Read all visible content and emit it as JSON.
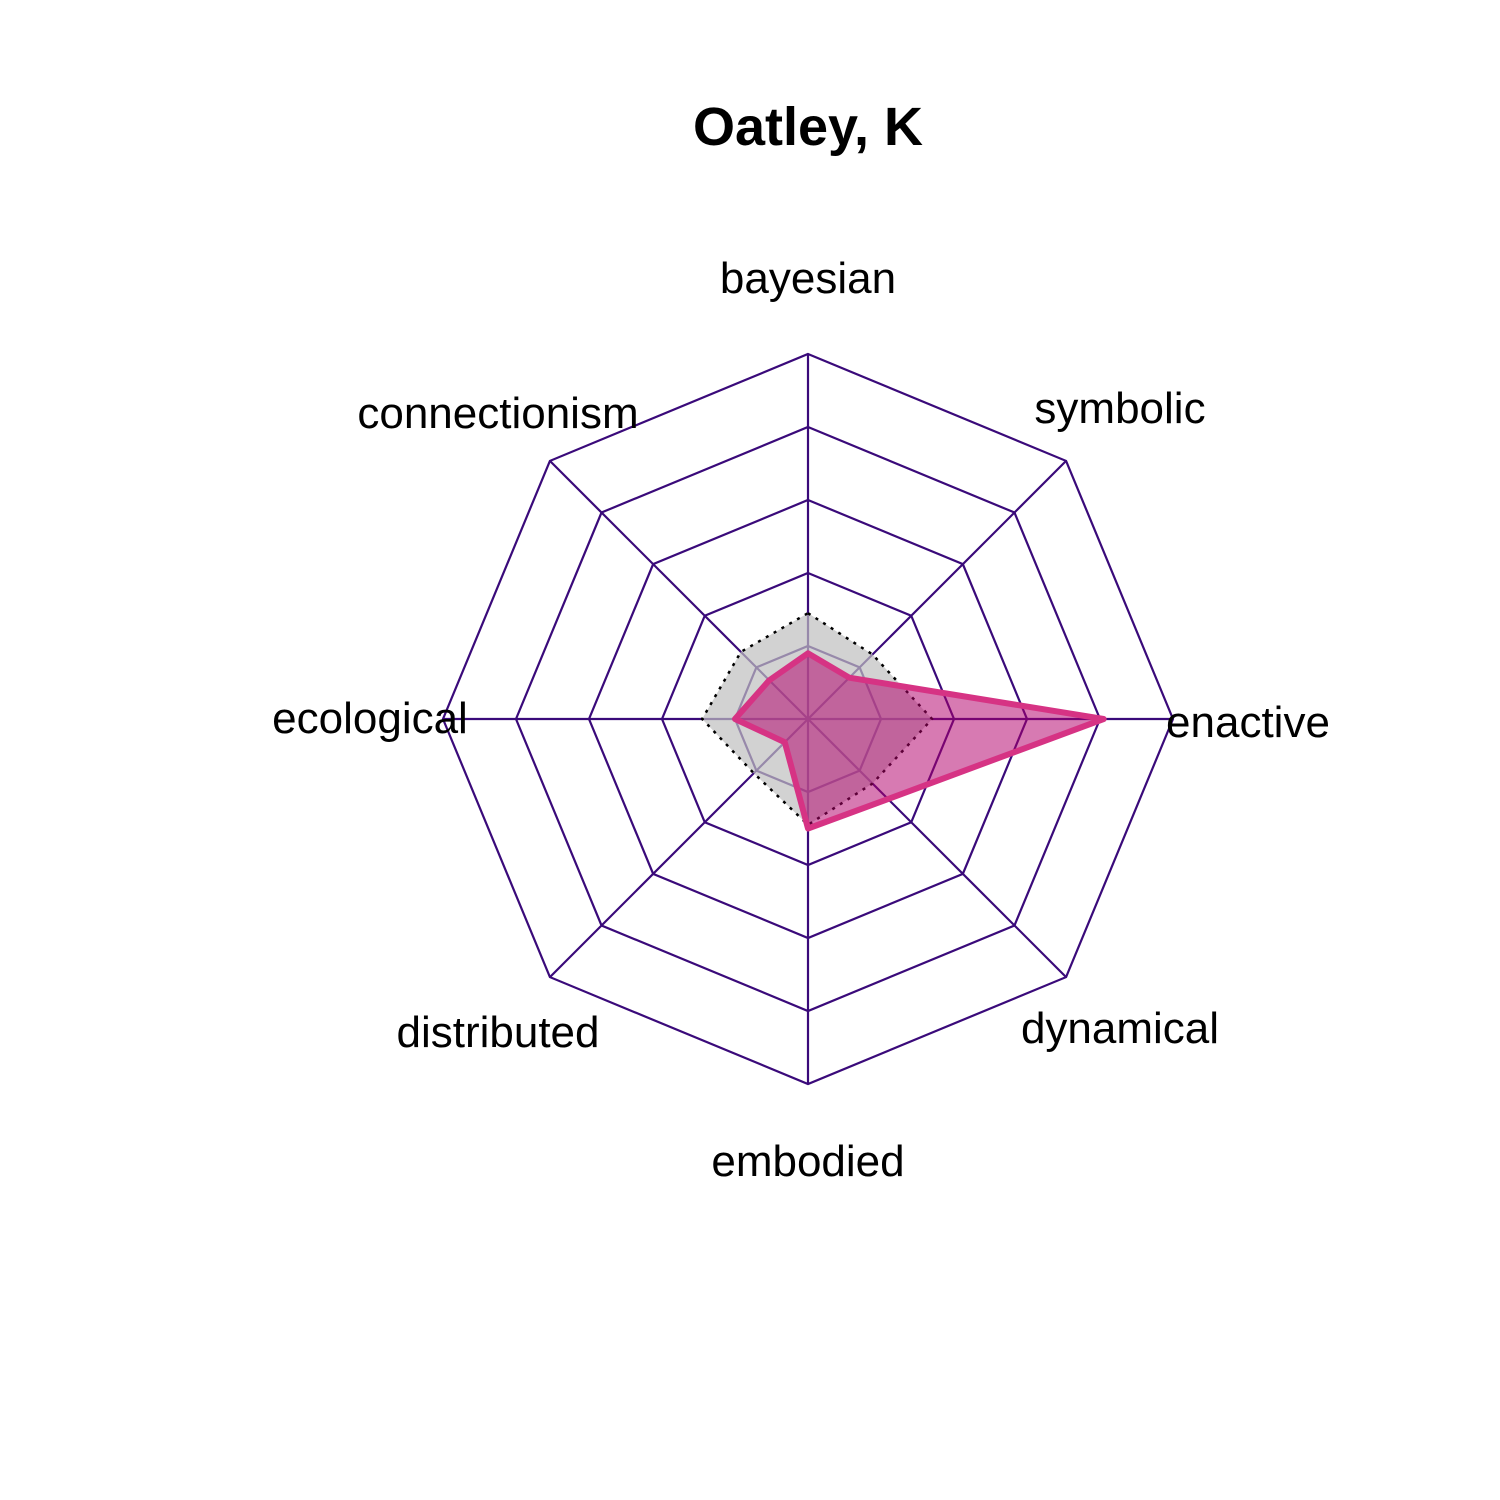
{
  "chart_data": {
    "type": "radar",
    "title": "Oatley, K",
    "axes": [
      "bayesian",
      "symbolic",
      "enactive",
      "dynamical",
      "embodied",
      "distributed",
      "ecological",
      "connectionism"
    ],
    "range": [
      0,
      1
    ],
    "grid_levels": 5,
    "series": [
      {
        "values": [
          0.18,
          0.16,
          0.81,
          0.31,
          0.3,
          0.09,
          0.2,
          0.15
        ],
        "color": "#d63384",
        "fill": "#b3006b"
      },
      {
        "values": [
          0.29,
          0.25,
          0.34,
          0.25,
          0.29,
          0.21,
          0.29,
          0.26
        ],
        "color": "#000000",
        "fill": "#bfbfbf",
        "line_style": "dotted"
      }
    ],
    "grid_color": "#3a0a7a"
  }
}
